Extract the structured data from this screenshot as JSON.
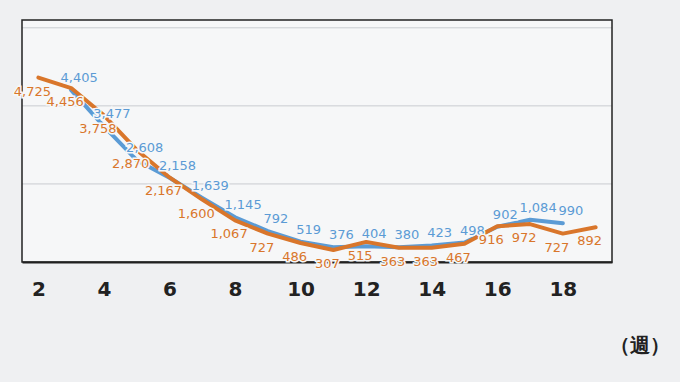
{
  "chart_data": {
    "type": "line",
    "x": [
      2,
      3,
      4,
      5,
      6,
      7,
      8,
      9,
      10,
      11,
      12,
      13,
      14,
      15,
      16,
      17,
      18,
      19
    ],
    "series": [
      {
        "color": "#5b9bd5",
        "values": [
          null,
          4405,
          3477,
          2608,
          2158,
          1639,
          1145,
          792,
          519,
          376,
          404,
          380,
          423,
          498,
          902,
          1084,
          990,
          null
        ],
        "value_labels": [
          null,
          "4,405",
          "3,477",
          "2,608",
          "2,158",
          "1,639",
          "1,145",
          "792",
          "519",
          "376",
          "404",
          "380",
          "423",
          "498",
          "902",
          "1,084",
          "990",
          null
        ]
      },
      {
        "color": "#d9762b",
        "values": [
          4725,
          4456,
          3758,
          2870,
          2167,
          1600,
          1067,
          727,
          486,
          307,
          515,
          363,
          363,
          467,
          916,
          972,
          727,
          892
        ],
        "value_labels": [
          "4,725",
          "4,456",
          "3,758",
          "2,870",
          "2,167",
          "1,600",
          "1,067",
          "727",
          "486",
          "307",
          "515",
          "363",
          "363",
          "467",
          "916",
          "972",
          "727",
          "892"
        ]
      }
    ],
    "x_label": "（週）",
    "xlim": [
      1.5,
      19.5
    ],
    "xticks": [
      2,
      4,
      6,
      8,
      10,
      12,
      14,
      16,
      18
    ],
    "ylim": [
      0,
      6200
    ],
    "yticks": [
      0,
      2000,
      4000,
      6000
    ],
    "grid": true,
    "tick_labels": "x",
    "data_labels": true
  }
}
